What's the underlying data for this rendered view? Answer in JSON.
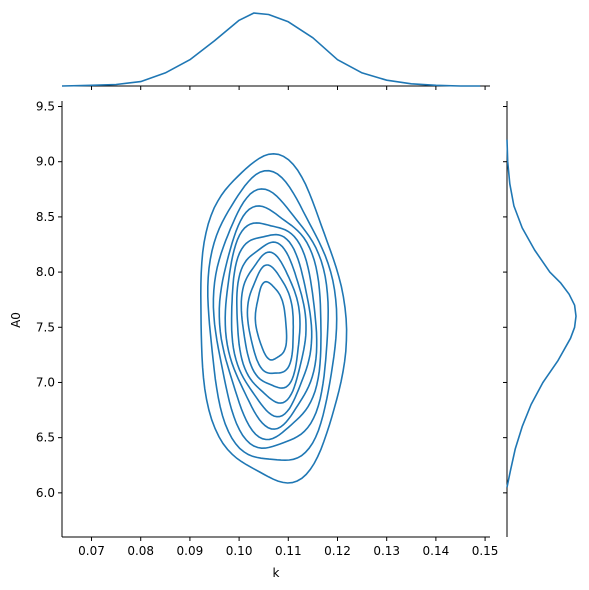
{
  "chart_data": {
    "type": "kde-jointplot",
    "xlabel": "k",
    "ylabel": "A0",
    "xlim": [
      0.064,
      0.151
    ],
    "ylim": [
      5.6,
      9.55
    ],
    "x_ticks": [
      0.07,
      0.08,
      0.09,
      0.1,
      0.11,
      0.12,
      0.13,
      0.14,
      0.15
    ],
    "x_tick_labels": [
      "0.07",
      "0.08",
      "0.09",
      "0.10",
      "0.11",
      "0.12",
      "0.13",
      "0.14",
      "0.15"
    ],
    "y_ticks": [
      6.0,
      6.5,
      7.0,
      7.5,
      8.0,
      8.5,
      9.0,
      9.5
    ],
    "y_tick_labels": [
      "6.0",
      "6.5",
      "7.0",
      "7.5",
      "8.0",
      "8.5",
      "9.0",
      "9.5"
    ],
    "line_color": "#1f77b4",
    "contour_center": {
      "k": 0.1065,
      "A0": 7.55
    },
    "contour_levels": [
      {
        "rx": 0.0315,
        "ry": 1.06,
        "rotation": 34
      },
      {
        "rx": 0.028,
        "ry": 0.93,
        "rotation": 34
      },
      {
        "rx": 0.0248,
        "ry": 0.83,
        "rotation": 34
      },
      {
        "rx": 0.0222,
        "ry": 0.74,
        "rotation": 34
      },
      {
        "rx": 0.0198,
        "ry": 0.66,
        "rotation": 35
      },
      {
        "rx": 0.0175,
        "ry": 0.58,
        "rotation": 35
      },
      {
        "rx": 0.0153,
        "ry": 0.5,
        "rotation": 35
      },
      {
        "rx": 0.013,
        "ry": 0.42,
        "rotation": 36
      },
      {
        "rx": 0.0105,
        "ry": 0.33,
        "rotation": 36
      },
      {
        "rx": 0.0075,
        "ry": 0.22,
        "rotation": 37
      }
    ],
    "marginal_x": {
      "x": [
        0.064,
        0.07,
        0.075,
        0.08,
        0.085,
        0.09,
        0.095,
        0.1,
        0.103,
        0.106,
        0.11,
        0.115,
        0.12,
        0.125,
        0.13,
        0.135,
        0.14,
        0.145,
        0.149
      ],
      "density": [
        0.0,
        0.01,
        0.02,
        0.06,
        0.18,
        0.36,
        0.62,
        0.9,
        1.0,
        0.98,
        0.88,
        0.66,
        0.36,
        0.18,
        0.08,
        0.03,
        0.01,
        0.0,
        0.0
      ]
    },
    "marginal_y": {
      "y": [
        6.05,
        6.2,
        6.4,
        6.6,
        6.8,
        7.0,
        7.2,
        7.4,
        7.5,
        7.6,
        7.7,
        7.8,
        7.9,
        8.0,
        8.2,
        8.4,
        8.6,
        8.8,
        9.0,
        9.2
      ],
      "density": [
        0.0,
        0.05,
        0.12,
        0.22,
        0.35,
        0.52,
        0.74,
        0.92,
        0.98,
        1.0,
        0.98,
        0.9,
        0.78,
        0.62,
        0.4,
        0.22,
        0.1,
        0.04,
        0.01,
        0.0
      ]
    }
  }
}
